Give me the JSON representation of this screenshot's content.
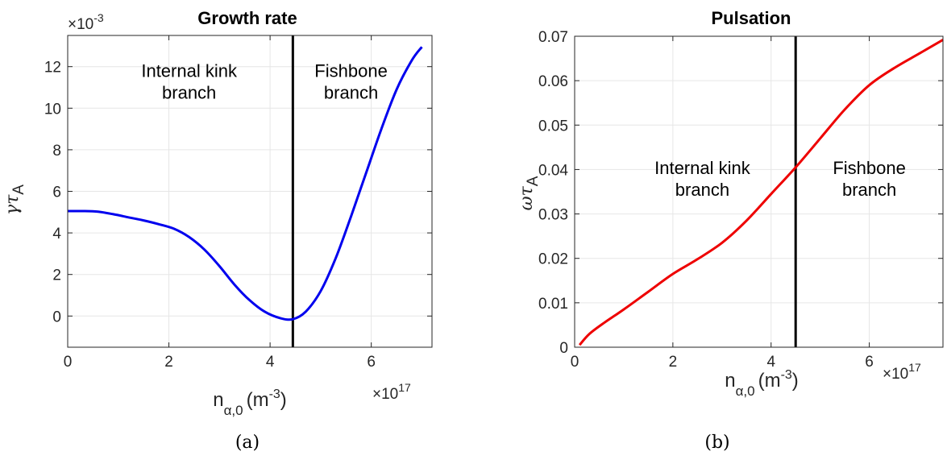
{
  "chart_data": [
    {
      "type": "line",
      "title": "Growth rate",
      "xlabel": "n",
      "xlabel_sub": "α,0",
      "xlabel_unit_open": "(m",
      "xlabel_unit_exp": "-3",
      "xlabel_unit_close": ")",
      "ylabel": "γτ",
      "ylabel_sub": "A",
      "x_multiplier": "×10",
      "x_multiplier_exp": "17",
      "y_multiplier": "×10",
      "y_multiplier_exp": "-3",
      "xlim": [
        0,
        7.2
      ],
      "ylim": [
        -1.5,
        13.5
      ],
      "xticks": [
        0,
        2,
        4,
        6
      ],
      "yticks": [
        0,
        2,
        4,
        6,
        8,
        10,
        12
      ],
      "grid": true,
      "vline_x": 4.45,
      "annotations": [
        {
          "text": [
            "Internal kink",
            "branch"
          ],
          "x": 2.4,
          "y": 11.5
        },
        {
          "text": [
            "Fishbone",
            "branch"
          ],
          "x": 5.6,
          "y": 11.5
        }
      ],
      "caption": "(a)",
      "series": [
        {
          "color": "#0000ee",
          "x": [
            0,
            0.3,
            0.6,
            0.9,
            1.2,
            1.5,
            1.8,
            2.1,
            2.4,
            2.7,
            3.0,
            3.3,
            3.6,
            3.9,
            4.2,
            4.45,
            4.7,
            5.0,
            5.3,
            5.6,
            5.9,
            6.2,
            6.5,
            6.8,
            7.0
          ],
          "y": [
            5.05,
            5.05,
            5.02,
            4.9,
            4.75,
            4.6,
            4.42,
            4.2,
            3.8,
            3.2,
            2.4,
            1.5,
            0.75,
            0.2,
            -0.1,
            -0.15,
            0.2,
            1.2,
            2.8,
            4.8,
            6.9,
            9.0,
            10.9,
            12.3,
            12.95
          ]
        }
      ]
    },
    {
      "type": "line",
      "title": "Pulsation",
      "xlabel": "n",
      "xlabel_sub": "α,0",
      "xlabel_unit_open": "(m",
      "xlabel_unit_exp": "-3",
      "xlabel_unit_close": ")",
      "ylabel": "ωτ",
      "ylabel_sub": "A",
      "x_multiplier": "×10",
      "x_multiplier_exp": "17",
      "xlim": [
        0,
        7.5
      ],
      "ylim": [
        0,
        0.07
      ],
      "xticks": [
        0,
        2,
        4,
        6
      ],
      "yticks": [
        0,
        0.01,
        0.02,
        0.03,
        0.04,
        0.05,
        0.06,
        0.07
      ],
      "ytick_labels": [
        "0",
        "0.01",
        "0.02",
        "0.03",
        "0.04",
        "0.05",
        "0.06",
        "0.07"
      ],
      "grid": true,
      "vline_x": 4.5,
      "annotations": [
        {
          "text": [
            "Internal kink",
            "branch"
          ],
          "x": 2.6,
          "y": 0.039
        },
        {
          "text": [
            "Fishbone",
            "branch"
          ],
          "x": 6.0,
          "y": 0.039
        }
      ],
      "caption": "(b)",
      "series": [
        {
          "color": "#ee0000",
          "x": [
            0.1,
            0.3,
            0.6,
            1.0,
            1.5,
            2.0,
            2.5,
            3.0,
            3.5,
            4.0,
            4.5,
            5.0,
            5.5,
            6.0,
            6.5,
            7.0,
            7.5
          ],
          "y": [
            0.0005,
            0.003,
            0.0055,
            0.0085,
            0.0125,
            0.0165,
            0.0198,
            0.0235,
            0.0285,
            0.0345,
            0.0405,
            0.047,
            0.0535,
            0.059,
            0.0628,
            0.066,
            0.0692
          ]
        }
      ]
    }
  ]
}
